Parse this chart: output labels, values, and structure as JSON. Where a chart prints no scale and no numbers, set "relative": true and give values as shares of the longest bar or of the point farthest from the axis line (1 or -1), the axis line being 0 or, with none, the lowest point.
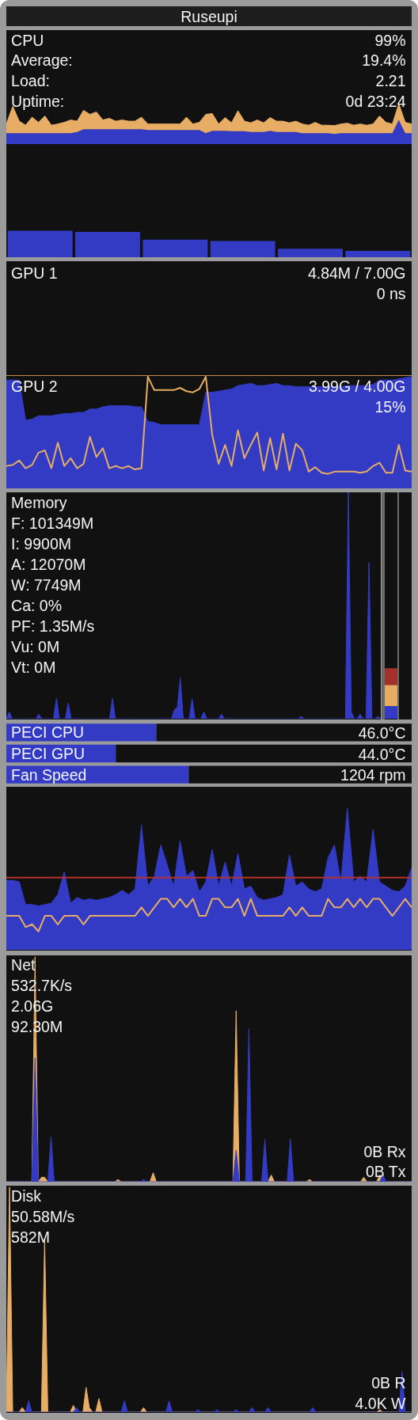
{
  "chart_data": [
    {
      "type": "other",
      "title": "Ruseupi"
    },
    {
      "type": "area",
      "title": "CPU",
      "annotations": [
        "99%",
        "Average:",
        "19.4%",
        "Load:",
        "2.21",
        "Uptime:",
        "0d 23:24"
      ],
      "relative": true,
      "stacked": true,
      "categories": [
        null,
        null,
        null,
        null,
        null,
        null,
        null,
        null,
        null,
        null,
        null,
        null,
        null,
        null,
        null,
        null,
        null,
        null,
        null,
        null,
        null,
        null,
        null,
        null,
        null,
        null,
        null,
        null,
        null,
        null,
        null,
        null,
        null,
        null,
        null,
        null,
        null,
        null,
        null,
        null,
        null,
        null,
        null,
        null,
        null,
        null,
        null,
        null,
        null,
        null,
        null,
        null,
        null,
        null,
        null,
        null,
        null,
        null,
        null,
        null,
        null,
        null,
        null,
        null
      ],
      "series": [
        {
          "type": "area",
          "color": "#333bc4",
          "values": [
            0.27,
            0.27,
            0.27,
            0.27,
            0.27,
            0.27,
            0.27,
            0.27,
            0.27,
            0.27,
            0.27,
            0.3,
            0.37,
            0.37,
            0.37,
            0.37,
            0.37,
            0.37,
            0.37,
            0.37,
            0.37,
            0.37,
            0.35,
            0.35,
            0.35,
            0.35,
            0.35,
            0.35,
            0.35,
            0.35,
            0.35,
            0.27,
            0.33,
            0.33,
            0.33,
            0.32,
            0.32,
            0.32,
            0.3,
            0.3,
            0.3,
            0.33,
            0.3,
            0.3,
            0.3,
            0.3,
            0.27,
            0.27,
            0.27,
            0.27,
            0.27,
            0.25,
            0.27,
            0.27,
            0.27,
            0.27,
            0.27,
            0.27,
            0.27,
            0.27,
            0.27,
            0.6,
            0.27,
            0.27
          ]
        },
        {
          "type": "area",
          "color": "#e7ad65",
          "values": [
            0.23,
            0.67,
            0.3,
            0.2,
            0.4,
            0.27,
            0.43,
            0.2,
            0.23,
            0.27,
            0.33,
            0.27,
            0.47,
            0.37,
            0.43,
            0.23,
            0.27,
            0.2,
            0.23,
            0.2,
            0.2,
            0.3,
            0.15,
            0.15,
            0.15,
            0.15,
            0.15,
            0.15,
            0.32,
            0.15,
            0.19,
            0.47,
            0.43,
            0.17,
            0.33,
            0.21,
            0.51,
            0.25,
            0.23,
            0.3,
            0.23,
            0.33,
            0.27,
            0.27,
            0.23,
            0.27,
            0.23,
            0.2,
            0.27,
            0.2,
            0.2,
            0.21,
            0.23,
            0.25,
            0.2,
            0.23,
            0.2,
            0.23,
            0.43,
            0.27,
            0.23,
            0.4,
            0.27,
            0.23
          ]
        }
      ]
    },
    {
      "type": "bar",
      "relative": true,
      "categories": [
        null,
        null,
        null,
        null,
        null,
        null
      ],
      "values": [
        1,
        0.95,
        0.66,
        0.61,
        0.32,
        0.24
      ],
      "color": "#333bc4"
    },
    {
      "type": "other",
      "title": "GPU 1",
      "annotations": [
        "4.84M / 7.00G",
        "0 ns"
      ]
    },
    {
      "type": "area",
      "title": "GPU 2",
      "annotations": [
        "3.99G / 4.00G",
        "15%"
      ],
      "relative": true,
      "categories": [
        null,
        null,
        null,
        null,
        null,
        null,
        null,
        null,
        null,
        null,
        null,
        null,
        null,
        null,
        null,
        null,
        null,
        null,
        null,
        null,
        null,
        null,
        null,
        null,
        null,
        null,
        null,
        null,
        null,
        null,
        null,
        null,
        null,
        null,
        null,
        null,
        null,
        null,
        null,
        null,
        null,
        null,
        null,
        null,
        null,
        null,
        null,
        null,
        null,
        null,
        null,
        null,
        null,
        null,
        null,
        null,
        null,
        null,
        null,
        null,
        null,
        null,
        null,
        null
      ],
      "series": [
        {
          "type": "area",
          "color": "#333bc4",
          "values": [
            0.97,
            0.97,
            0.97,
            0.61,
            0.62,
            0.65,
            0.65,
            0.65,
            0.66,
            0.67,
            0.67,
            0.68,
            0.68,
            0.71,
            0.71,
            0.73,
            0.74,
            0.74,
            0.74,
            0.74,
            0.73,
            0.73,
            0.6,
            0.59,
            0.57,
            0.57,
            0.57,
            0.57,
            0.57,
            0.57,
            0.57,
            0.86,
            0.86,
            0.87,
            0.88,
            0.89,
            0.92,
            0.93,
            0.94,
            0.92,
            0.92,
            0.93,
            0.94,
            0.92,
            0.92,
            0.91,
            0.91,
            0.91,
            0.91,
            0.91,
            0.91,
            0.91,
            0.91,
            0.92,
            0.92,
            0.92,
            0.92,
            0.93,
            0.97,
            0.97,
            0.97,
            0.98,
            0.99,
            1
          ]
        },
        {
          "type": "line",
          "color": "#e7ad65",
          "values": [
            0.2,
            0.21,
            0.25,
            0.18,
            0.21,
            0.32,
            0.34,
            0.18,
            0.41,
            0.2,
            0.27,
            0.18,
            0.22,
            0.46,
            0.28,
            0.36,
            0.18,
            0.2,
            0.18,
            0.2,
            0.17,
            0.18,
            1,
            0.88,
            0.88,
            0.88,
            0.88,
            0.9,
            0.87,
            0.86,
            0.89,
            1,
            0.48,
            0.22,
            0.39,
            0.2,
            0.52,
            0.27,
            0.39,
            0.5,
            0.16,
            0.45,
            0.17,
            0.49,
            0.16,
            0.4,
            0.34,
            0.15,
            0.19,
            0.14,
            0.13,
            0.15,
            0.15,
            0.15,
            0.15,
            0.14,
            0.15,
            0.2,
            0.23,
            0.14,
            0.14,
            0.39,
            0.16,
            0.15
          ]
        }
      ]
    },
    {
      "type": "area",
      "title": "Memory",
      "annotations": [
        "F: 101349M",
        "I: 9900M",
        "A: 12070M",
        "W: 7749M",
        "Ca: 0%",
        "PF: 1.35M/s",
        "Vu: 0M",
        "Vt: 0M"
      ],
      "relative": true,
      "categories": [
        null,
        null,
        null,
        null,
        null,
        null,
        null,
        null,
        null,
        null,
        null,
        null,
        null,
        null,
        null,
        null,
        null,
        null,
        null,
        null,
        null,
        null,
        null,
        null,
        null,
        null,
        null,
        null,
        null,
        null,
        null,
        null,
        null,
        null,
        null,
        null,
        null,
        null,
        null,
        null,
        null,
        null,
        null,
        null,
        null,
        null,
        null,
        null,
        null,
        null,
        null,
        null,
        null,
        null,
        null,
        null,
        null,
        null,
        null,
        null,
        null,
        null,
        null,
        null,
        null,
        null,
        null,
        null,
        null,
        null,
        null,
        null,
        null,
        null,
        null,
        null,
        null,
        null,
        null,
        null,
        null,
        null,
        null,
        null,
        null,
        null,
        null,
        null,
        null,
        null,
        null,
        null,
        null,
        null,
        null,
        null,
        null,
        null,
        null,
        null,
        null,
        null,
        null,
        null,
        null,
        null,
        null,
        null,
        null,
        null,
        null,
        null,
        null,
        null,
        null,
        null,
        null,
        null,
        null,
        null,
        null,
        null,
        null,
        null,
        null,
        null,
        null,
        null
      ],
      "color": "#333bc4",
      "values": [
        0,
        0.03,
        0,
        0,
        0,
        0,
        0,
        0,
        0,
        0,
        0,
        0.02,
        0,
        0,
        0,
        0,
        0,
        0.09,
        0,
        0,
        0,
        0.07,
        0,
        0,
        0,
        0,
        0,
        0,
        0,
        0,
        0,
        0,
        0,
        0,
        0,
        0,
        0.09,
        0,
        0,
        0,
        0,
        0,
        0,
        0,
        0,
        0,
        0,
        0,
        0,
        0,
        0,
        0,
        0,
        0,
        0,
        0,
        0,
        0.04,
        0.05,
        0.18,
        0,
        0,
        0,
        0.09,
        0,
        0,
        0,
        0.03,
        0,
        0,
        0,
        0,
        0,
        0.02,
        0,
        0,
        0,
        0,
        0,
        0,
        0,
        0,
        0,
        0,
        0,
        0,
        0,
        0,
        0,
        0,
        0,
        0,
        0,
        0,
        0,
        0,
        0,
        0,
        0,
        0,
        0.01,
        0,
        0,
        0,
        0,
        0,
        0,
        0,
        0,
        0,
        0,
        0,
        0,
        0,
        0,
        0,
        1,
        0.03,
        0,
        0,
        0.02,
        0,
        0,
        0.69,
        0,
        0,
        0.01,
        0
      ]
    },
    {
      "type": "bar",
      "stacked": true,
      "relative": true,
      "categories": [
        null
      ],
      "series": [
        {
          "color": "#333bc4",
          "values": [
            0.25
          ]
        },
        {
          "color": "#e6ac62",
          "values": [
            0.42
          ]
        },
        {
          "color": "#a3302a",
          "values": [
            0.33
          ]
        }
      ]
    },
    {
      "type": "bar",
      "orientation": "horizontal",
      "stacked": true,
      "relative": true,
      "categories": [
        "PECI CPU",
        "PECI GPU",
        "Fan Speed"
      ],
      "annotations": [
        "46.0°C",
        "44.0°C",
        "1204 rpm"
      ],
      "series": [
        {
          "color": "#333bc4",
          "values": [
            0.37,
            0.27,
            0.45
          ]
        },
        {
          "color": "#111111",
          "values": [
            0.63,
            0.73,
            0.55
          ]
        }
      ]
    },
    {
      "type": "area",
      "relative": true,
      "categories": [
        null,
        null,
        null,
        null,
        null,
        null,
        null,
        null,
        null,
        null,
        null,
        null,
        null,
        null,
        null,
        null,
        null,
        null,
        null,
        null,
        null,
        null,
        null,
        null,
        null,
        null,
        null,
        null,
        null,
        null,
        null,
        null,
        null,
        null,
        null,
        null,
        null,
        null,
        null,
        null,
        null,
        null,
        null,
        null,
        null,
        null,
        null,
        null,
        null,
        null,
        null,
        null,
        null,
        null,
        null,
        null,
        null,
        null,
        null,
        null,
        null,
        null,
        null,
        null
      ],
      "series": [
        {
          "type": "area",
          "color": "#333bc4",
          "values": [
            0.49,
            0.49,
            0.48,
            0.32,
            0.32,
            0.31,
            0.32,
            0.33,
            0.39,
            0.55,
            0.33,
            0.37,
            0.35,
            0.36,
            0.35,
            0.36,
            0.37,
            0.39,
            0.42,
            0.39,
            0.43,
            0.88,
            0.45,
            0.52,
            0.74,
            0.6,
            0.45,
            0.77,
            0.52,
            0.56,
            0.41,
            0.48,
            0.71,
            0.45,
            0.62,
            0.45,
            0.68,
            0.43,
            0.45,
            0.37,
            0.35,
            0.36,
            0.37,
            0.39,
            0.67,
            0.45,
            0.48,
            0.43,
            0.41,
            0.43,
            0.65,
            0.74,
            0.48,
            1,
            0.48,
            0.52,
            0.48,
            0.85,
            0.48,
            0.45,
            0.42,
            0.41,
            0.45,
            0.58
          ]
        },
        {
          "type": "line",
          "color": "#b3322b",
          "values": [
            0.51,
            0.51,
            0.51,
            0.51,
            0.51,
            0.51,
            0.51,
            0.51,
            0.51,
            0.51,
            0.51,
            0.51,
            0.51,
            0.51,
            0.51,
            0.51,
            0.51,
            0.51,
            0.51,
            0.51,
            0.51,
            0.51,
            0.51,
            0.51,
            0.51,
            0.51,
            0.51,
            0.51,
            0.51,
            0.51,
            0.51,
            0.51,
            0.51,
            0.51,
            0.51,
            0.51,
            0.51,
            0.51,
            0.51,
            0.51,
            0.51,
            0.51,
            0.51,
            0.51,
            0.51,
            0.51,
            0.51,
            0.51,
            0.51,
            0.51,
            0.51,
            0.51,
            0.51,
            0.51,
            0.51,
            0.51,
            0.51,
            0.51,
            0.51,
            0.51,
            0.51,
            0.51,
            0.51,
            0.51
          ]
        },
        {
          "type": "line",
          "color": "#e7ad65",
          "values": [
            0.24,
            0.24,
            0.24,
            0.16,
            0.18,
            0.13,
            0.24,
            0.24,
            0.18,
            0.24,
            0.24,
            0.24,
            0.18,
            0.24,
            0.24,
            0.24,
            0.24,
            0.24,
            0.24,
            0.24,
            0.24,
            0.3,
            0.24,
            0.3,
            0.36,
            0.36,
            0.3,
            0.36,
            0.3,
            0.36,
            0.24,
            0.24,
            0.36,
            0.36,
            0.3,
            0.3,
            0.36,
            0.24,
            0.36,
            0.24,
            0.24,
            0.24,
            0.24,
            0.24,
            0.3,
            0.24,
            0.3,
            0.24,
            0.24,
            0.24,
            0.36,
            0.3,
            0.3,
            0.36,
            0.3,
            0.36,
            0.3,
            0.36,
            0.36,
            0.3,
            0.24,
            0.3,
            0.36,
            0.3
          ]
        }
      ]
    },
    {
      "type": "area",
      "title": "Net",
      "annotations": [
        "532.7K/s",
        "2.06G",
        "92.30M",
        "0B Rx",
        "0B Tx"
      ],
      "relative": true,
      "categories": [
        null,
        null,
        null,
        null,
        null,
        null,
        null,
        null,
        null,
        null,
        null,
        null,
        null,
        null,
        null,
        null,
        null,
        null,
        null,
        null,
        null,
        null,
        null,
        null,
        null,
        null,
        null,
        null,
        null,
        null,
        null,
        null,
        null,
        null,
        null,
        null,
        null,
        null,
        null,
        null,
        null,
        null,
        null,
        null,
        null,
        null,
        null,
        null,
        null,
        null,
        null,
        null,
        null,
        null,
        null,
        null,
        null,
        null,
        null,
        null,
        null,
        null,
        null,
        null,
        null,
        null,
        null,
        null,
        null,
        null,
        null,
        null,
        null,
        null,
        null,
        null,
        null,
        null,
        null,
        null,
        null,
        null,
        null,
        null,
        null,
        null,
        null,
        null,
        null,
        null,
        null,
        null,
        null,
        null,
        null,
        null,
        null,
        null,
        null,
        null,
        null,
        null,
        null,
        null,
        null,
        null,
        null,
        null,
        null,
        null,
        null,
        null,
        null,
        null,
        null,
        null,
        null,
        null,
        null,
        null,
        null,
        null,
        null,
        null,
        null,
        null,
        null,
        null
      ],
      "series": [
        {
          "type": "area",
          "color": "#e7ad65",
          "values": [
            0,
            0,
            0,
            0,
            0,
            0,
            0,
            0,
            0,
            1,
            0,
            0.02,
            0.02,
            0,
            0,
            0,
            0,
            0,
            0,
            0,
            0,
            0,
            0,
            0,
            0,
            0,
            0,
            0,
            0,
            0,
            0,
            0,
            0,
            0,
            0,
            0.01,
            0,
            0,
            0,
            0,
            0,
            0,
            0,
            0,
            0,
            0,
            0.04,
            0,
            0,
            0,
            0,
            0,
            0,
            0,
            0,
            0,
            0,
            0,
            0,
            0,
            0,
            0,
            0,
            0,
            0,
            0,
            0,
            0,
            0,
            0,
            0,
            0,
            0.76,
            0,
            0,
            0,
            0,
            0,
            0,
            0,
            0,
            0,
            0,
            0.03,
            0,
            0,
            0,
            0,
            0,
            0,
            0,
            0,
            0,
            0,
            0,
            0.01,
            0,
            0,
            0,
            0,
            0,
            0,
            0,
            0,
            0,
            0,
            0,
            0,
            0,
            0,
            0,
            0,
            0.02,
            0,
            0,
            0,
            0,
            0.03,
            0,
            0,
            0,
            0,
            0,
            0,
            0,
            0,
            0,
            0
          ]
        },
        {
          "type": "area",
          "color": "#333bc4",
          "values": [
            0,
            0,
            0,
            0,
            0,
            0,
            0,
            0,
            0,
            0.55,
            0,
            0,
            0,
            0,
            0.2,
            0,
            0,
            0,
            0,
            0,
            0,
            0,
            0,
            0,
            0,
            0,
            0,
            0,
            0,
            0,
            0,
            0,
            0,
            0,
            0,
            0,
            0,
            0,
            0,
            0,
            0,
            0,
            0,
            0.01,
            0,
            0,
            0,
            0,
            0,
            0,
            0,
            0,
            0,
            0,
            0,
            0,
            0,
            0,
            0,
            0,
            0,
            0,
            0,
            0,
            0,
            0,
            0,
            0,
            0,
            0,
            0,
            0,
            0.14,
            0,
            0,
            0,
            0.68,
            0,
            0,
            0,
            0,
            0.19,
            0,
            0,
            0,
            0,
            0,
            0,
            0,
            0.19,
            0,
            0,
            0,
            0,
            0,
            0,
            0,
            0,
            0,
            0,
            0,
            0,
            0,
            0,
            0,
            0,
            0,
            0,
            0,
            0,
            0,
            0,
            0,
            0,
            0,
            0,
            0,
            0,
            0.03,
            0,
            0,
            0,
            0,
            0,
            0,
            0,
            0,
            0
          ]
        }
      ]
    },
    {
      "type": "area",
      "title": "Disk",
      "annotations": [
        "50.58M/s",
        "582M",
        "0B R",
        "4.0K W"
      ],
      "relative": true,
      "categories": [
        null,
        null,
        null,
        null,
        null,
        null,
        null,
        null,
        null,
        null,
        null,
        null,
        null,
        null,
        null,
        null,
        null,
        null,
        null,
        null,
        null,
        null,
        null,
        null,
        null,
        null,
        null,
        null,
        null,
        null,
        null,
        null,
        null,
        null,
        null,
        null,
        null,
        null,
        null,
        null,
        null,
        null,
        null,
        null,
        null,
        null,
        null,
        null,
        null,
        null,
        null,
        null,
        null,
        null,
        null,
        null,
        null,
        null,
        null,
        null,
        null,
        null,
        null,
        null,
        null,
        null,
        null,
        null,
        null,
        null,
        null,
        null,
        null,
        null,
        null,
        null,
        null,
        null,
        null,
        null,
        null,
        null,
        null,
        null,
        null,
        null,
        null,
        null,
        null,
        null,
        null,
        null,
        null,
        null,
        null,
        null,
        null,
        null,
        null,
        null,
        null,
        null,
        null,
        null,
        null,
        null,
        null,
        null,
        null,
        null,
        null,
        null,
        null,
        null,
        null,
        null,
        null,
        null,
        null,
        null,
        null,
        null,
        null,
        null,
        null,
        null,
        null,
        null
      ],
      "series": [
        {
          "type": "area",
          "color": "#e7ad65",
          "values": [
            0,
            1,
            0,
            0,
            0,
            0.02,
            0,
            0,
            0,
            0,
            0,
            0,
            0.77,
            0,
            0,
            0,
            0,
            0,
            0,
            0,
            0,
            0.03,
            0,
            0,
            0,
            0.11,
            0.02,
            0,
            0,
            0.06,
            0,
            0,
            0,
            0,
            0,
            0,
            0,
            0,
            0,
            0,
            0,
            0,
            0,
            0.02,
            0,
            0,
            0,
            0,
            0,
            0,
            0,
            0,
            0,
            0,
            0,
            0,
            0,
            0,
            0,
            0,
            0,
            0,
            0,
            0,
            0,
            0,
            0,
            0,
            0,
            0,
            0,
            0,
            0,
            0,
            0,
            0,
            0,
            0,
            0,
            0,
            0,
            0,
            0,
            0,
            0,
            0,
            0,
            0,
            0,
            0,
            0,
            0,
            0,
            0,
            0,
            0,
            0,
            0,
            0,
            0,
            0,
            0,
            0,
            0,
            0,
            0,
            0,
            0,
            0,
            0,
            0,
            0,
            0,
            0,
            0,
            0,
            0,
            0.01,
            0,
            0,
            0,
            0,
            0,
            0,
            0,
            0,
            0,
            0
          ]
        },
        {
          "type": "area",
          "color": "#333bc4",
          "values": [
            0,
            0,
            0,
            0,
            0,
            0,
            0,
            0.05,
            0,
            0,
            0,
            0,
            0,
            0,
            0,
            0,
            0,
            0,
            0,
            0,
            0,
            0,
            0.02,
            0,
            0,
            0,
            0,
            0,
            0,
            0,
            0,
            0,
            0,
            0,
            0,
            0,
            0,
            0.05,
            0,
            0,
            0,
            0,
            0,
            0,
            0,
            0,
            0,
            0,
            0,
            0,
            0,
            0.05,
            0,
            0,
            0,
            0,
            0,
            0,
            0,
            0,
            0.01,
            0,
            0,
            0,
            0,
            0,
            0.01,
            0,
            0,
            0,
            0,
            0,
            0.01,
            0,
            0,
            0,
            0,
            0.02,
            0,
            0,
            0,
            0,
            0.02,
            0,
            0,
            0,
            0,
            0,
            0,
            0,
            0,
            0,
            0,
            0,
            0,
            0,
            0.02,
            0,
            0,
            0,
            0,
            0,
            0,
            0,
            0,
            0,
            0,
            0,
            0,
            0,
            0,
            0,
            0,
            0,
            0,
            0,
            0,
            0,
            0,
            0,
            0,
            0,
            0,
            0,
            0.18,
            0,
            0,
            0
          ]
        }
      ]
    }
  ]
}
